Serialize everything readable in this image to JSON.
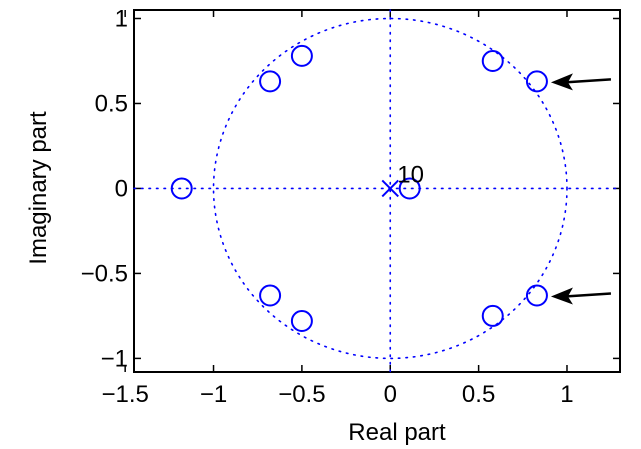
{
  "chart_data": {
    "type": "scatter",
    "xlabel": "Real part",
    "ylabel": "Imaginary part",
    "xlim": [
      -1.45,
      1.3
    ],
    "ylim": [
      -1.08,
      1.05
    ],
    "x_ticks": [
      -1.5,
      -1,
      -0.5,
      0,
      0.5,
      1
    ],
    "x_tick_labels": [
      "−1.5",
      "−1",
      "−0.5",
      "0",
      "0.5",
      "1"
    ],
    "y_ticks": [
      -1,
      -0.5,
      0,
      0.5,
      1
    ],
    "y_tick_labels": [
      "−1",
      "−0.5",
      "0",
      "0.5",
      "1"
    ],
    "grid": false,
    "unit_circle": true,
    "color": "#0000ff",
    "series": [
      {
        "marker": "o",
        "points": [
          {
            "x": -1.18,
            "y": 0.0
          },
          {
            "x": -0.68,
            "y": 0.63
          },
          {
            "x": -0.5,
            "y": 0.78
          },
          {
            "x": -0.68,
            "y": -0.63
          },
          {
            "x": -0.5,
            "y": -0.78
          },
          {
            "x": 0.58,
            "y": 0.75
          },
          {
            "x": 0.83,
            "y": 0.63
          },
          {
            "x": 0.58,
            "y": -0.75
          },
          {
            "x": 0.83,
            "y": -0.63
          },
          {
            "x": 0.11,
            "y": 0.0
          }
        ]
      },
      {
        "marker": "x",
        "points": [
          {
            "x": 0.0,
            "y": 0.0
          }
        ]
      }
    ],
    "annotations": [
      {
        "text": "10",
        "x": 0.0,
        "y": 0.0
      }
    ],
    "arrows": [
      {
        "target_x": 0.83,
        "target_y": 0.63
      },
      {
        "target_x": 0.83,
        "target_y": -0.63
      }
    ]
  }
}
